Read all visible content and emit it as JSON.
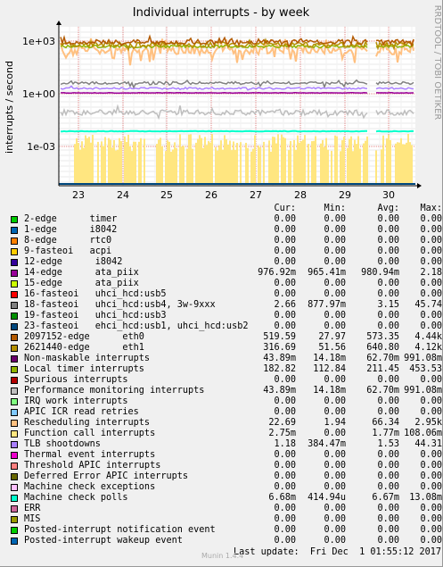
{
  "chart_data": {
    "type": "line",
    "title": "Individual interrupts - by week",
    "ylabel": "interrupts / second",
    "y_scale": "log",
    "yticks": [
      "1e+03",
      "1e+00",
      "1e-03"
    ],
    "xticks": [
      "23",
      "24",
      "25",
      "26",
      "27",
      "28",
      "29",
      "30"
    ],
    "side_label": "RRDTOOL / TOBI OETIKER",
    "columns": [
      "Cur:",
      "Min:",
      "Avg:",
      "Max:"
    ],
    "series": [
      {
        "name": "2-edge      timer",
        "color": "#00cc00",
        "cur": "0.00",
        "min": "0.00",
        "avg": "0.00",
        "max": "0.00"
      },
      {
        "name": "1-edge      i8042",
        "color": "#0066b3",
        "cur": "0.00",
        "min": "0.00",
        "avg": "0.00",
        "max": "0.00"
      },
      {
        "name": "8-edge      rtc0",
        "color": "#ff8000",
        "cur": "0.00",
        "min": "0.00",
        "avg": "0.00",
        "max": "0.00"
      },
      {
        "name": "9-fasteoi   acpi",
        "color": "#ffcc00",
        "cur": "0.00",
        "min": "0.00",
        "avg": "0.00",
        "max": "0.00"
      },
      {
        "name": "12-edge      i8042",
        "color": "#330099",
        "cur": "0.00",
        "min": "0.00",
        "avg": "0.00",
        "max": "0.00"
      },
      {
        "name": "14-edge      ata_piix",
        "color": "#990099",
        "cur": "976.92m",
        "min": "965.41m",
        "avg": "980.94m",
        "max": "2.18"
      },
      {
        "name": "15-edge      ata_piix",
        "color": "#ccff00",
        "cur": "0.00",
        "min": "0.00",
        "avg": "0.00",
        "max": "0.00"
      },
      {
        "name": "16-fasteoi   uhci_hcd:usb5",
        "color": "#ff0000",
        "cur": "0.00",
        "min": "0.00",
        "avg": "0.00",
        "max": "0.00"
      },
      {
        "name": "18-fasteoi   uhci_hcd:usb4, 3w-9xxx",
        "color": "#808080",
        "cur": "2.66",
        "min": "877.97m",
        "avg": "3.15",
        "max": "45.74"
      },
      {
        "name": "19-fasteoi   uhci_hcd:usb3",
        "color": "#008f00",
        "cur": "0.00",
        "min": "0.00",
        "avg": "0.00",
        "max": "0.00"
      },
      {
        "name": "23-fasteoi   ehci_hcd:usb1, uhci_hcd:usb2",
        "color": "#00487d",
        "cur": "0.00",
        "min": "0.00",
        "avg": "0.00",
        "max": "0.00"
      },
      {
        "name": "2097152-edge      eth0",
        "color": "#b35a00",
        "cur": "519.59",
        "min": "27.97",
        "avg": "573.35",
        "max": "4.44k"
      },
      {
        "name": "2621440-edge      eth1",
        "color": "#b38f00",
        "cur": "316.69",
        "min": "51.56",
        "avg": "640.80",
        "max": "4.12k"
      },
      {
        "name": "Non-maskable interrupts",
        "color": "#6b006b",
        "cur": "43.89m",
        "min": "14.18m",
        "avg": "62.70m",
        "max": "991.08m"
      },
      {
        "name": "Local timer interrupts",
        "color": "#8fb300",
        "cur": "182.82",
        "min": "112.84",
        "avg": "211.45",
        "max": "453.53"
      },
      {
        "name": "Spurious interrupts",
        "color": "#b30000",
        "cur": "0.00",
        "min": "0.00",
        "avg": "0.00",
        "max": "0.00"
      },
      {
        "name": "Performance monitoring interrupts",
        "color": "#bebebe",
        "cur": "43.89m",
        "min": "14.18m",
        "avg": "62.70m",
        "max": "991.08m"
      },
      {
        "name": "IRQ work interrupts",
        "color": "#80ff80",
        "cur": "0.00",
        "min": "0.00",
        "avg": "0.00",
        "max": "0.00"
      },
      {
        "name": "APIC ICR read retries",
        "color": "#80c9ff",
        "cur": "0.00",
        "min": "0.00",
        "avg": "0.00",
        "max": "0.00"
      },
      {
        "name": "Rescheduling interrupts",
        "color": "#ffc080",
        "cur": "22.69",
        "min": "1.94",
        "avg": "66.34",
        "max": "2.95k"
      },
      {
        "name": "Function call interrupts",
        "color": "#ffe680",
        "cur": "2.75m",
        "min": "0.00",
        "avg": "1.77m",
        "max": "108.06m"
      },
      {
        "name": "TLB shootdowns",
        "color": "#aa80ff",
        "cur": "1.18",
        "min": "384.47m",
        "avg": "1.53",
        "max": "44.31"
      },
      {
        "name": "Thermal event interrupts",
        "color": "#ee00cc",
        "cur": "0.00",
        "min": "0.00",
        "avg": "0.00",
        "max": "0.00"
      },
      {
        "name": "Threshold APIC interrupts",
        "color": "#ff8080",
        "cur": "0.00",
        "min": "0.00",
        "avg": "0.00",
        "max": "0.00"
      },
      {
        "name": "Deferred Error APIC interrupts",
        "color": "#666600",
        "cur": "0.00",
        "min": "0.00",
        "avg": "0.00",
        "max": "0.00"
      },
      {
        "name": "Machine check exceptions",
        "color": "#ffbfff",
        "cur": "0.00",
        "min": "0.00",
        "avg": "0.00",
        "max": "0.00"
      },
      {
        "name": "Machine check polls",
        "color": "#00ffcc",
        "cur": "6.68m",
        "min": "414.94u",
        "avg": "6.67m",
        "max": "13.08m"
      },
      {
        "name": "ERR",
        "color": "#cc6699",
        "cur": "0.00",
        "min": "0.00",
        "avg": "0.00",
        "max": "0.00"
      },
      {
        "name": "MIS",
        "color": "#999900",
        "cur": "0.00",
        "min": "0.00",
        "avg": "0.00",
        "max": "0.00"
      },
      {
        "name": "Posted-interrupt notification event",
        "color": "#00cc00",
        "cur": "0.00",
        "min": "0.00",
        "avg": "0.00",
        "max": "0.00"
      },
      {
        "name": "Posted-interrupt wakeup event",
        "color": "#0066b3",
        "cur": "0.00",
        "min": "0.00",
        "avg": "0.00",
        "max": "0.00"
      }
    ],
    "last_update": "Last update:  Fri Dec  1 01:55:12 2017",
    "footer": "Munin 1.4.4"
  }
}
